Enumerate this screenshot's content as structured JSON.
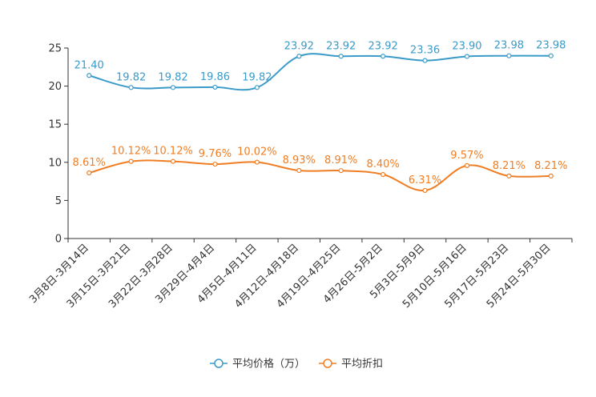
{
  "chart_data": {
    "type": "line",
    "categories": [
      "3月8日-3月14日",
      "3月15日-3月21日",
      "3月22日-3月28日",
      "3月29日-4月4日",
      "4月5日-4月11日",
      "4月12日-4月18日",
      "4月19日-4月25日",
      "4月26日-5月2日",
      "5月3日-5月9日",
      "5月10日-5月16日",
      "5月17日-5月23日",
      "5月24日-5月30日"
    ],
    "ylim": [
      0,
      25
    ],
    "yticks": [
      0,
      5,
      10,
      15,
      20,
      25
    ],
    "series": [
      {
        "name": "平均价格（万）",
        "color": "#3a9ac9",
        "values": [
          21.4,
          19.82,
          19.82,
          19.86,
          19.82,
          23.92,
          23.92,
          23.92,
          23.36,
          23.9,
          23.98,
          23.98
        ],
        "labels": [
          "21.40",
          "19.82",
          "19.82",
          "19.86",
          "19.82",
          "23.92",
          "23.92",
          "23.92",
          "23.36",
          "23.90",
          "23.98",
          "23.98"
        ]
      },
      {
        "name": "平均折扣",
        "color": "#f07e24",
        "values": [
          8.61,
          10.12,
          10.12,
          9.76,
          10.02,
          8.93,
          8.91,
          8.4,
          6.31,
          9.57,
          8.21,
          8.21
        ],
        "labels": [
          "8.61%",
          "10.12%",
          "10.12%",
          "9.76%",
          "10.02%",
          "8.93%",
          "8.91%",
          "8.40%",
          "6.31%",
          "9.57%",
          "8.21%",
          "8.21%"
        ]
      }
    ]
  }
}
